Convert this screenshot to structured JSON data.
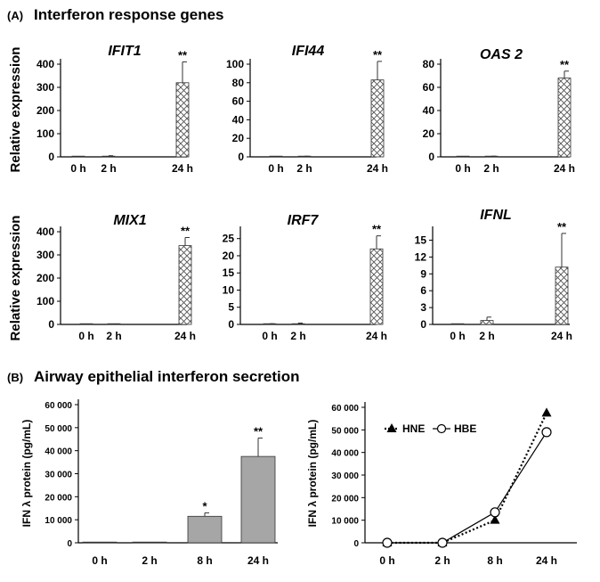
{
  "panel_a": {
    "label": "(A)",
    "title": "Interferon response genes"
  },
  "panel_b": {
    "label": "(B)",
    "title": "Airway epithelial interferon secretion"
  },
  "colors": {
    "axis": "#000000",
    "bar_fill": "#a6a6a6",
    "hatch": "#555555",
    "line": "#000000"
  },
  "chart_data": [
    {
      "type": "bar",
      "title": "IFIT1",
      "ylabel": "Relative expression",
      "categories": [
        "0 h",
        "2 h",
        "24 h"
      ],
      "values": [
        0.5,
        3,
        320
      ],
      "errors": [
        0,
        2,
        90
      ],
      "significance": [
        "",
        "",
        "**"
      ],
      "ylim": [
        0,
        400
      ],
      "yticks": [
        0,
        100,
        200,
        300,
        400
      ],
      "ytick_labels": [
        "0",
        "100",
        "200",
        "300",
        "400"
      ],
      "fill": "hatch",
      "grid": false
    },
    {
      "type": "bar",
      "title": "IFI44",
      "ylabel": "",
      "categories": [
        "0 h",
        "2 h",
        "24 h"
      ],
      "values": [
        0.2,
        0.4,
        83
      ],
      "errors": [
        0,
        0.3,
        20
      ],
      "significance": [
        "",
        "",
        "**"
      ],
      "ylim": [
        0,
        100
      ],
      "yticks": [
        0,
        20,
        40,
        60,
        80,
        100
      ],
      "ytick_labels": [
        "0",
        "20",
        "40",
        "60",
        "80",
        "100"
      ],
      "fill": "hatch",
      "grid": false
    },
    {
      "type": "bar",
      "title": "OAS 2",
      "ylabel": "",
      "categories": [
        "0 h",
        "2 h",
        "24 h"
      ],
      "values": [
        0.2,
        0.3,
        68
      ],
      "errors": [
        0,
        0.3,
        6
      ],
      "significance": [
        "",
        "",
        "**"
      ],
      "ylim": [
        0,
        80
      ],
      "yticks": [
        0,
        20,
        40,
        60,
        80
      ],
      "ytick_labels": [
        "0",
        "20",
        "40",
        "60",
        "80"
      ],
      "fill": "hatch",
      "grid": false
    },
    {
      "type": "bar",
      "title": "MIX1",
      "ylabel": "Relative expression",
      "categories": [
        "0 h",
        "2 h",
        "24 h"
      ],
      "values": [
        0.5,
        1,
        340
      ],
      "errors": [
        0,
        1,
        35
      ],
      "significance": [
        "",
        "",
        "**"
      ],
      "ylim": [
        0,
        400
      ],
      "yticks": [
        0,
        100,
        200,
        300,
        400
      ],
      "ytick_labels": [
        "0",
        "100",
        "200",
        "300",
        "400"
      ],
      "fill": "hatch",
      "grid": false
    },
    {
      "type": "bar",
      "title": "IRF7",
      "ylabel": "",
      "categories": [
        "0 h",
        "2 h",
        "24 h"
      ],
      "values": [
        0.1,
        0.2,
        22
      ],
      "errors": [
        0.1,
        0.2,
        3.8
      ],
      "significance": [
        "",
        "",
        "**"
      ],
      "ylim": [
        0,
        27
      ],
      "yticks": [
        0,
        5,
        10,
        15,
        20,
        25
      ],
      "ytick_labels": [
        "0",
        "5",
        "10",
        "15",
        "20",
        "25"
      ],
      "fill": "hatch",
      "grid": false
    },
    {
      "type": "bar",
      "title": "IFNL",
      "ylabel": "",
      "categories": [
        "0 h",
        "2 h",
        "24 h"
      ],
      "values": [
        0,
        0.7,
        10.2
      ],
      "errors": [
        0,
        0.6,
        6
      ],
      "significance": [
        "",
        "",
        "**"
      ],
      "ylim": [
        0,
        16.5
      ],
      "yticks": [
        0,
        3,
        6,
        9,
        12,
        15
      ],
      "ytick_labels": [
        "0",
        "3",
        "6",
        "9",
        "12",
        "15"
      ],
      "fill": "hatch",
      "grid": false
    },
    {
      "type": "bar",
      "title": "",
      "ylabel": "IFN λ protein (pg/mL)",
      "categories": [
        "0 h",
        "2 h",
        "8 h",
        "24 h"
      ],
      "values": [
        0,
        0,
        11500,
        37500
      ],
      "errors": [
        0,
        0,
        1500,
        8000
      ],
      "significance": [
        "",
        "",
        "*",
        "**"
      ],
      "ylim": [
        0,
        60000
      ],
      "yticks": [
        0,
        10000,
        20000,
        30000,
        40000,
        50000,
        60000
      ],
      "ytick_labels": [
        "0",
        "10 000",
        "20 000",
        "30 000",
        "40 000",
        "50 000",
        "60 000"
      ],
      "fill": "solid",
      "grid": false
    },
    {
      "type": "line",
      "title": "",
      "ylabel": "IFN λ protein (pg/mL)",
      "categories": [
        "0 h",
        "2 h",
        "8 h",
        "24 h"
      ],
      "series": [
        {
          "name": "HNE",
          "values": [
            0,
            0,
            10000,
            57500
          ],
          "marker": "triangle",
          "dash": "dotted"
        },
        {
          "name": "HBE",
          "values": [
            0,
            0,
            13500,
            49000
          ],
          "marker": "open-circle",
          "dash": "solid"
        }
      ],
      "ylim": [
        0,
        60000
      ],
      "yticks": [
        0,
        10000,
        20000,
        30000,
        40000,
        50000,
        60000
      ],
      "ytick_labels": [
        "0",
        "10 000",
        "20 000",
        "30 000",
        "40 000",
        "50 000",
        "60 000"
      ],
      "legend_position": "top-left",
      "grid": false
    }
  ]
}
